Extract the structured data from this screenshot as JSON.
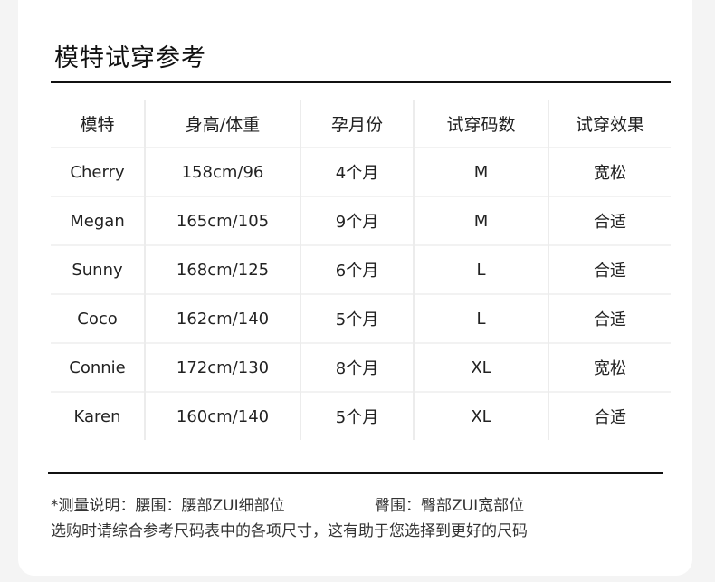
{
  "title": "模特试穿参考",
  "table": {
    "headers": [
      "模特",
      "身高/体重",
      "孕月份",
      "试穿码数",
      "试穿效果"
    ],
    "rows": [
      [
        "Cherry",
        "158cm/96",
        "4个月",
        "M",
        "宽松"
      ],
      [
        "Megan",
        "165cm/105",
        "9个月",
        "M",
        "合适"
      ],
      [
        "Sunny",
        "168cm/125",
        "6个月",
        "L",
        "合适"
      ],
      [
        "Coco",
        "162cm/140",
        "5个月",
        "L",
        "合适"
      ],
      [
        "Connie",
        "172cm/130",
        "8个月",
        "XL",
        "宽松"
      ],
      [
        "Karen",
        "160cm/140",
        "5个月",
        "XL",
        "合适"
      ]
    ]
  },
  "notes": {
    "waist": "*测量说明：腰围：腰部ZUI细部位",
    "hip": "臀围：臀部ZUI宽部位",
    "advice": "选购时请综合参考尺码表中的各项尺寸，这有助于您选择到更好的尺码"
  }
}
